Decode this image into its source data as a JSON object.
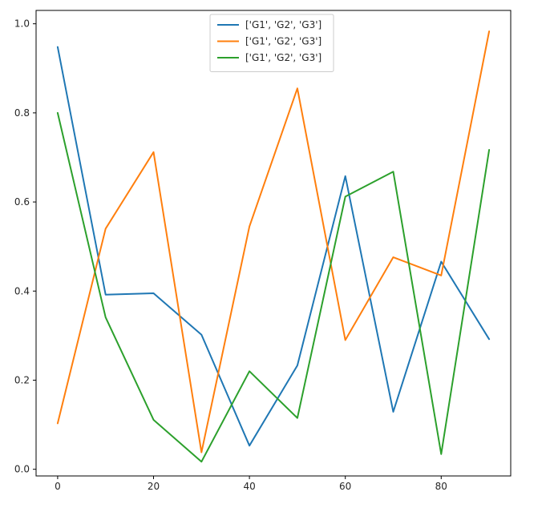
{
  "chart_data": {
    "type": "line",
    "title": "",
    "xlabel": "",
    "ylabel": "",
    "xlim": [
      -4.5,
      94.5
    ],
    "ylim": [
      -0.015,
      1.03
    ],
    "xticks": [
      0,
      20,
      40,
      60,
      80
    ],
    "xtick_labels": [
      "0",
      "20",
      "40",
      "60",
      "80"
    ],
    "yticks": [
      0.0,
      0.2,
      0.4,
      0.6,
      0.8,
      1.0
    ],
    "ytick_labels": [
      "0.0",
      "0.2",
      "0.4",
      "0.6",
      "0.8",
      "1.0"
    ],
    "grid": false,
    "legend_position": "upper center",
    "x": [
      0,
      10,
      20,
      30,
      40,
      50,
      60,
      70,
      80,
      90
    ],
    "series": [
      {
        "name": "['G1', 'G2', 'G3']",
        "color": "#1f77b4",
        "values": [
          0.948,
          0.392,
          0.395,
          0.302,
          0.053,
          0.233,
          0.658,
          0.129,
          0.466,
          0.292
        ]
      },
      {
        "name": "['G1', 'G2', 'G3']",
        "color": "#ff7f0e",
        "values": [
          0.103,
          0.54,
          0.712,
          0.038,
          0.545,
          0.855,
          0.29,
          0.476,
          0.435,
          0.983
        ]
      },
      {
        "name": "['G1', 'G2', 'G3']",
        "color": "#2ca02c",
        "values": [
          0.8,
          0.341,
          0.111,
          0.017,
          0.22,
          0.115,
          0.612,
          0.668,
          0.034,
          0.717
        ]
      }
    ]
  }
}
